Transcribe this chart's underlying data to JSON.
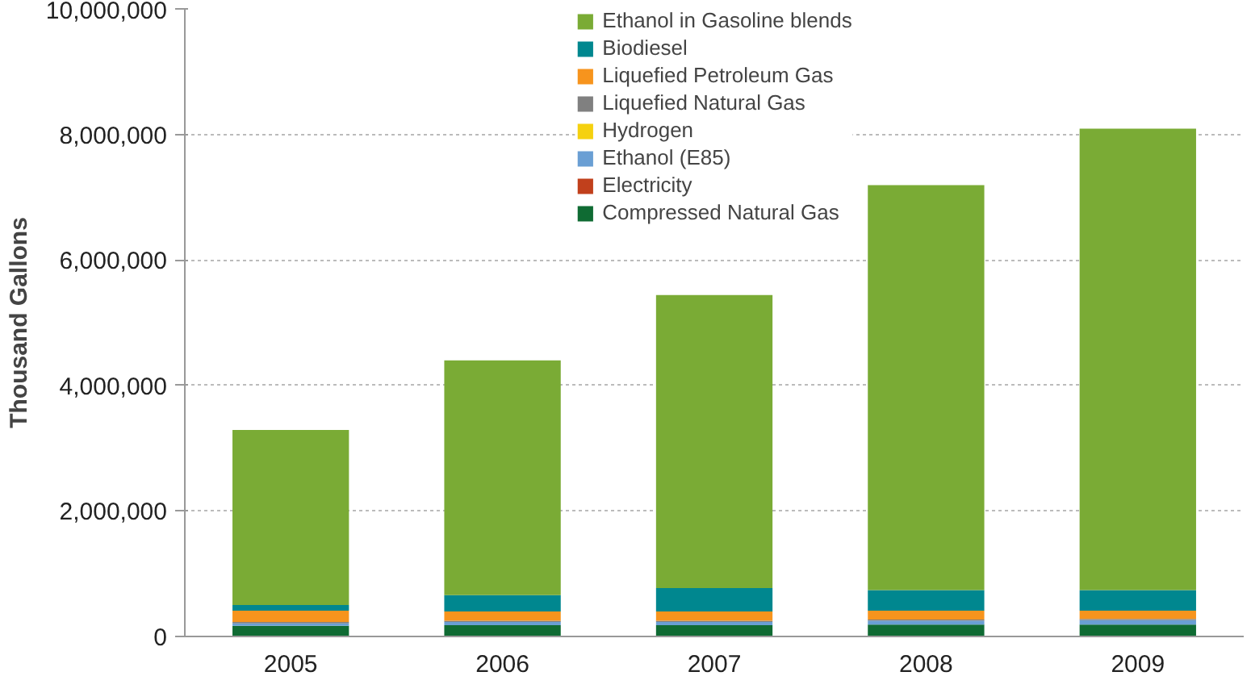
{
  "chart_data": {
    "type": "bar",
    "stacked": true,
    "ylabel": "Thousand Gallons",
    "categories": [
      "2005",
      "2006",
      "2007",
      "2008",
      "2009"
    ],
    "series": [
      {
        "name": "Compressed Natural Gas",
        "color": "#0f6b33",
        "values": [
          170000,
          180000,
          180000,
          190000,
          190000
        ]
      },
      {
        "name": "Electricity",
        "color": "#c1401c",
        "values": [
          null,
          null,
          null,
          null,
          null
        ]
      },
      {
        "name": "Ethanol (E85)",
        "color": "#6a9fd4",
        "values": [
          40000,
          50000,
          50000,
          60000,
          70000
        ]
      },
      {
        "name": "Hydrogen",
        "color": "#f5d10f",
        "values": [
          null,
          null,
          null,
          null,
          null
        ]
      },
      {
        "name": "Liquefied Natural Gas",
        "color": "#808080",
        "values": [
          20000,
          20000,
          20000,
          20000,
          20000
        ]
      },
      {
        "name": "Liquefied Petroleum Gas",
        "color": "#f7941d",
        "values": [
          180000,
          150000,
          150000,
          140000,
          130000
        ]
      },
      {
        "name": "Biodiesel",
        "color": "#00878f",
        "values": [
          90000,
          260000,
          370000,
          330000,
          330000
        ]
      },
      {
        "name": "Ethanol in Gasoline blends",
        "color": "#7aab35",
        "values": [
          2790000,
          3740000,
          4670000,
          6450000,
          7350000
        ]
      }
    ],
    "ylim": [
      0,
      10000000
    ],
    "yticks": [
      {
        "value": 0,
        "label": "0"
      },
      {
        "value": 2000000,
        "label": "2,000,000"
      },
      {
        "value": 4000000,
        "label": "4,000,000"
      },
      {
        "value": 6000000,
        "label": "6,000,000"
      },
      {
        "value": 8000000,
        "label": "8,000,000"
      },
      {
        "value": 10000000,
        "label": "10,000,000"
      }
    ],
    "grid": "y",
    "legend": "top"
  }
}
